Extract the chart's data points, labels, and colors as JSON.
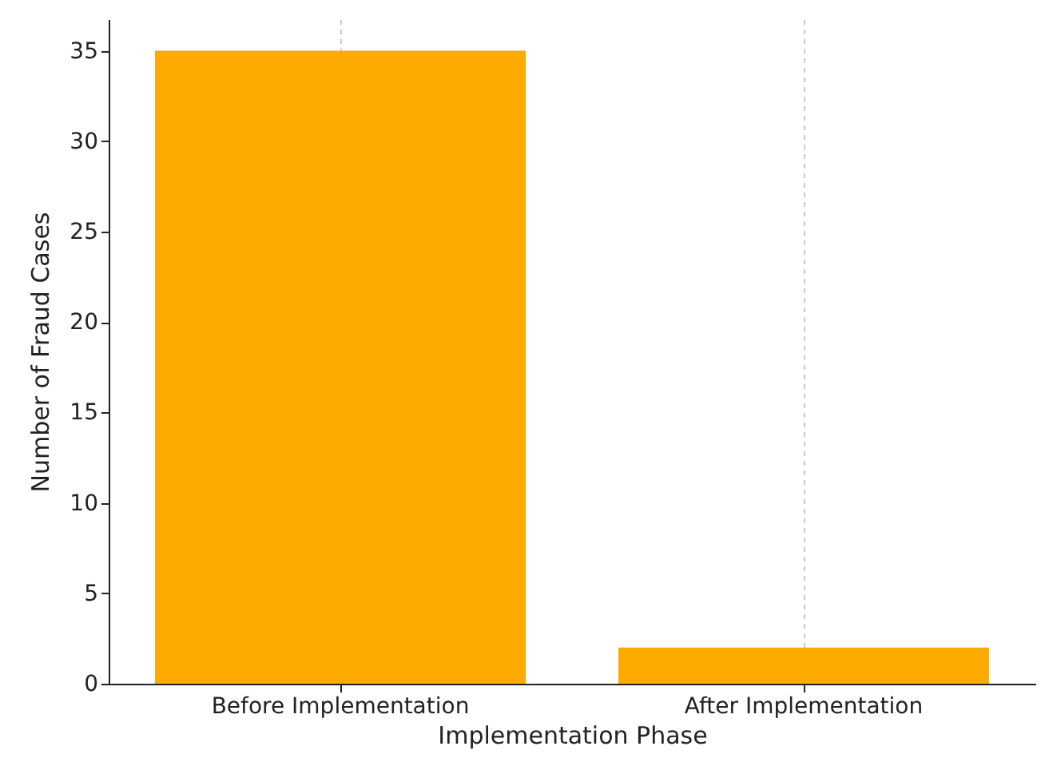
{
  "chart_data": {
    "type": "bar",
    "xlabel": "Implementation Phase",
    "ylabel": "Number of Fraud Cases",
    "categories": [
      "Before Implementation",
      "After Implementation"
    ],
    "values": [
      35,
      2
    ],
    "color": "#ffaa00",
    "ylim": [
      0,
      36.75
    ],
    "yticks": [
      0,
      5,
      10,
      15,
      20,
      25,
      30,
      35
    ],
    "grid": "x"
  }
}
